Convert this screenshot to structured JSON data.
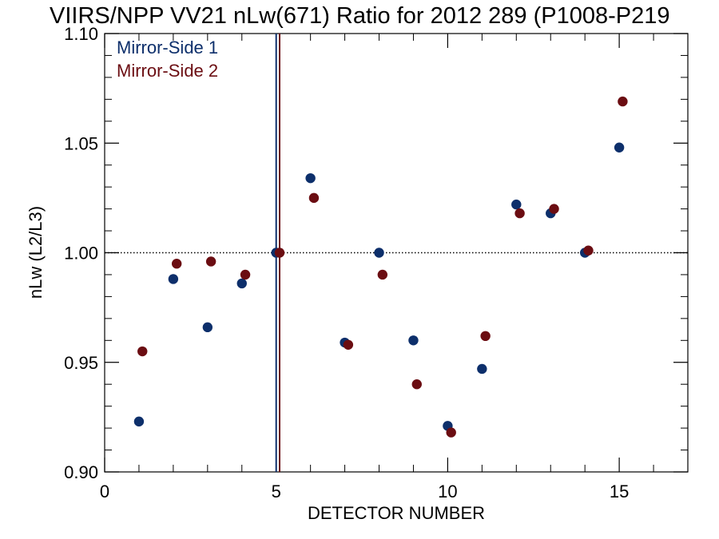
{
  "chart_data": {
    "type": "scatter",
    "title": "VIIRS/NPP VV21 nLw(671) Ratio for 2012 289 (P1008-P219",
    "xlabel": "DETECTOR NUMBER",
    "ylabel": "nLw (L2/L3)",
    "xlim": [
      0,
      17
    ],
    "ylim": [
      0.9,
      1.1
    ],
    "x_ticks": [
      "0",
      "5",
      "10",
      "15"
    ],
    "y_ticks": [
      "0.90",
      "0.95",
      "1.00",
      "1.05",
      "1.10"
    ],
    "reference_line_y": 1.0,
    "vertical_lines_x": [
      {
        "series": "Mirror-Side 1",
        "x": 5.0
      },
      {
        "series": "Mirror-Side 2",
        "x": 5.1
      }
    ],
    "legend_position": "top-left",
    "series": [
      {
        "name": "Mirror-Side 1",
        "color": "#0d2f6b",
        "x": [
          1,
          2,
          3,
          4,
          5,
          6,
          7,
          8,
          9,
          10,
          11,
          12,
          13,
          14,
          15
        ],
        "y": [
          0.923,
          0.988,
          0.966,
          0.986,
          1.0,
          1.034,
          0.959,
          1.0,
          0.96,
          0.921,
          0.947,
          1.022,
          1.018,
          1.0,
          1.048
        ]
      },
      {
        "name": "Mirror-Side 2",
        "color": "#6b0d12",
        "x": [
          1.1,
          2.1,
          3.1,
          4.1,
          5.1,
          6.1,
          7.1,
          8.1,
          9.1,
          10.1,
          11.1,
          12.1,
          13.1,
          14.1,
          15.1
        ],
        "y": [
          0.955,
          0.995,
          0.996,
          0.99,
          1.0,
          1.025,
          0.958,
          0.99,
          0.94,
          0.918,
          0.962,
          1.018,
          1.02,
          1.001,
          1.069
        ]
      }
    ]
  }
}
